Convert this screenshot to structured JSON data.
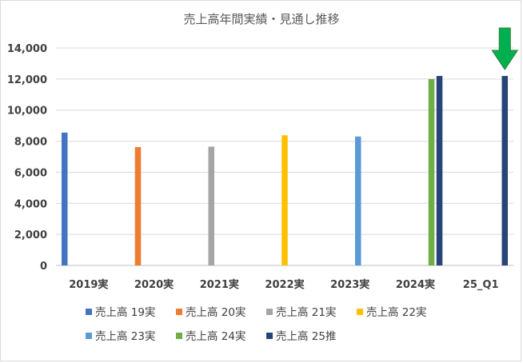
{
  "chart_data": {
    "type": "bar",
    "title": "売上高年間実績・見通し推移",
    "categories": [
      "2019実",
      "2020実",
      "2021実",
      "2022実",
      "2023実",
      "2024実",
      "25_Q1"
    ],
    "ylim": [
      0,
      14000
    ],
    "yticks": [
      0,
      2000,
      4000,
      6000,
      8000,
      10000,
      12000,
      14000
    ],
    "ytick_labels": [
      "0",
      "2,000",
      "4,000",
      "6,000",
      "8,000",
      "10,000",
      "12,000",
      "14,000"
    ],
    "grid": true,
    "legend_position": "bottom",
    "series": [
      {
        "name": "売上高 19実",
        "color": "#4472c4",
        "values": [
          8550,
          null,
          null,
          null,
          null,
          null,
          null
        ]
      },
      {
        "name": "売上高 20実",
        "color": "#ed7d31",
        "values": [
          null,
          7620,
          null,
          null,
          null,
          null,
          null
        ]
      },
      {
        "name": "売上高 21実",
        "color": "#a5a5a5",
        "values": [
          null,
          null,
          7650,
          null,
          null,
          null,
          null
        ]
      },
      {
        "name": "売上高 22実",
        "color": "#ffc000",
        "values": [
          null,
          null,
          null,
          8380,
          null,
          null,
          null
        ]
      },
      {
        "name": "売上高 23実",
        "color": "#5b9bd5",
        "values": [
          null,
          null,
          null,
          null,
          8300,
          null,
          null
        ]
      },
      {
        "name": "売上高 24実",
        "color": "#70ad47",
        "values": [
          null,
          null,
          null,
          null,
          null,
          12000,
          null
        ]
      },
      {
        "name": "売上高 25推",
        "color": "#264478",
        "values": [
          null,
          null,
          null,
          null,
          null,
          12200,
          12200
        ]
      }
    ],
    "annotations": [
      {
        "type": "arrow",
        "color": "#00b050",
        "direction": "down",
        "target_category": "25_Q1"
      }
    ]
  }
}
